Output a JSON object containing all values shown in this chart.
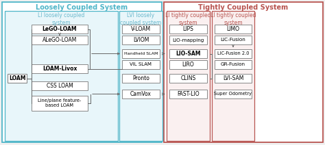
{
  "loosely_title": "Loosely Coupled System",
  "tightly_title": "Tightly Coupled System",
  "li_loosely_title": "LI loosely coupled\nsystem",
  "lvi_loosely_title": "LVI loosely\ncoupled system",
  "li_tightly_title1": "LI tightly coupled\nsystem",
  "li_tightly_title2": "LI tightly coupled\nsystem",
  "loam_label": "LOAM",
  "li_loosely_items": [
    "LeGO-LOAM",
    "ALeGO-LOAM",
    "LOAM-Livox",
    "CSS LOAM",
    "Line/plane feature-\nbased LOAM"
  ],
  "lvi_loosely_items": [
    "V-LOAM",
    "LVIOM",
    "Handheld SLAM",
    "VIL SLAM",
    "Pronto",
    "CamVox"
  ],
  "li_tightly_items": [
    "LIPS",
    "LIO-mapping",
    "LIO-SAM",
    "LIRO",
    "CLINS",
    "FAST-LIO"
  ],
  "li_tightly2_items": [
    "LIMO",
    "LIC-Fusion",
    "LIC-Fusion 2.0",
    "GR-Fusion",
    "LVI-SAM",
    "Super Odometry"
  ],
  "loosely_border_color": "#4eb5c8",
  "tightly_border_color": "#b85450",
  "box_border": "#888888",
  "arrow_color": "#666666",
  "title_color_loosely": "#4eb5c8",
  "title_color_tightly": "#b85450",
  "subtitle_color_loosely": "#6ab8cc",
  "subtitle_color_tightly": "#b85450",
  "bg_loosely": "#e8f6fa",
  "bg_tightly": "#faf0f0",
  "bg_white": "#ffffff",
  "bg_outer": "#f0f0f0"
}
